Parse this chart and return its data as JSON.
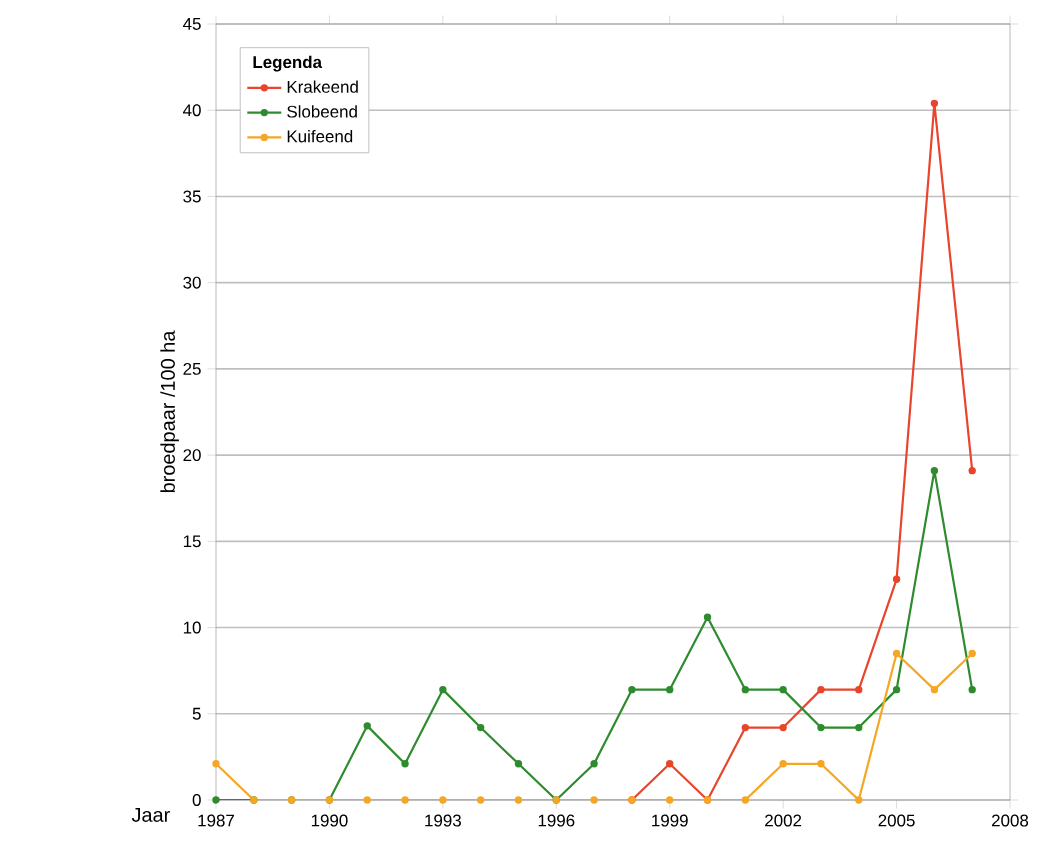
{
  "chart_data": {
    "type": "line",
    "xlabel": "Jaar",
    "ylabel": "broedpaar /100 ha",
    "legend_title": "Legenda",
    "x": [
      1987,
      1988,
      1989,
      1990,
      1991,
      1992,
      1993,
      1994,
      1995,
      1996,
      1997,
      1998,
      1999,
      2000,
      2001,
      2002,
      2003,
      2004,
      2005,
      2006,
      2007
    ],
    "series": [
      {
        "name": "Krakeend",
        "color": "#e8452c",
        "values": [
          null,
          null,
          null,
          null,
          null,
          null,
          null,
          null,
          null,
          null,
          null,
          0,
          2.1,
          0,
          4.2,
          4.2,
          6.4,
          6.4,
          12.8,
          40.4,
          19.1
        ]
      },
      {
        "name": "Slobeend",
        "color": "#2e8b2e",
        "values": [
          0,
          0,
          0,
          0,
          4.3,
          2.1,
          6.4,
          4.2,
          2.1,
          0,
          2.1,
          6.4,
          6.4,
          10.6,
          6.4,
          6.4,
          4.2,
          4.2,
          6.4,
          19.1,
          6.4
        ]
      },
      {
        "name": "Kuifeend",
        "color": "#f5a623",
        "values": [
          2.1,
          0,
          0,
          0,
          0,
          0,
          0,
          0,
          0,
          0,
          0,
          0,
          0,
          0,
          0,
          2.1,
          2.1,
          0,
          8.5,
          6.4,
          8.5
        ]
      }
    ],
    "xlim": [
      1987,
      2008
    ],
    "xticks": [
      1987,
      1990,
      1993,
      1996,
      1999,
      2002,
      2005,
      2008
    ],
    "ylim": [
      0,
      45
    ],
    "yticks": [
      0,
      5,
      10,
      15,
      20,
      25,
      30,
      35,
      40,
      45
    ],
    "grid": "y",
    "legend": "top left",
    "marker": "circle",
    "line_style": "solid"
  }
}
